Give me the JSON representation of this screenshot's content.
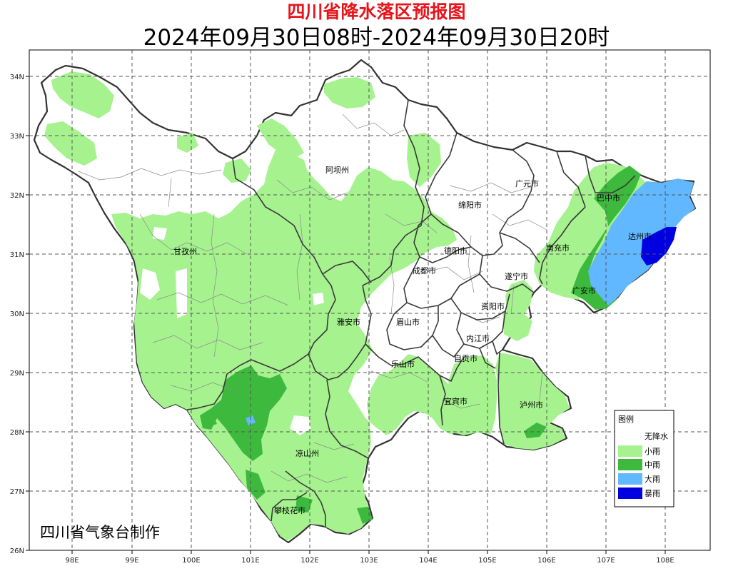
{
  "title": "四川省降水落区预报图",
  "subtitle": "2024年09月30日08时-2024年09月30日20时",
  "credit": "四川省气象台制作",
  "x_ticks": [
    "98E",
    "99E",
    "100E",
    "101E",
    "102E",
    "103E",
    "104E",
    "105E",
    "106E",
    "107E",
    "108E"
  ],
  "y_ticks": [
    "34N",
    "33N",
    "32N",
    "31N",
    "30N",
    "29N",
    "28N",
    "27N",
    "26N"
  ],
  "cities": [
    "阿坝州",
    "广元市",
    "巴中市",
    "绵阳市",
    "达州市",
    "南充市",
    "德阳市",
    "甘孜州",
    "成都市",
    "遂宁市",
    "广安市",
    "资阳市",
    "雅安市",
    "眉山市",
    "内江市",
    "自贡市",
    "乐山市",
    "宜宾市",
    "泸州市",
    "凉山州",
    "攀枝花市"
  ],
  "legend": {
    "title": "图例",
    "items": [
      {
        "label": "无降水",
        "color": "#ffffff"
      },
      {
        "label": "小雨",
        "color": "#a6f28f"
      },
      {
        "label": "中雨",
        "color": "#3dba3d"
      },
      {
        "label": "大雨",
        "color": "#61b8ff"
      },
      {
        "label": "暴雨",
        "color": "#0000e1"
      }
    ]
  }
}
